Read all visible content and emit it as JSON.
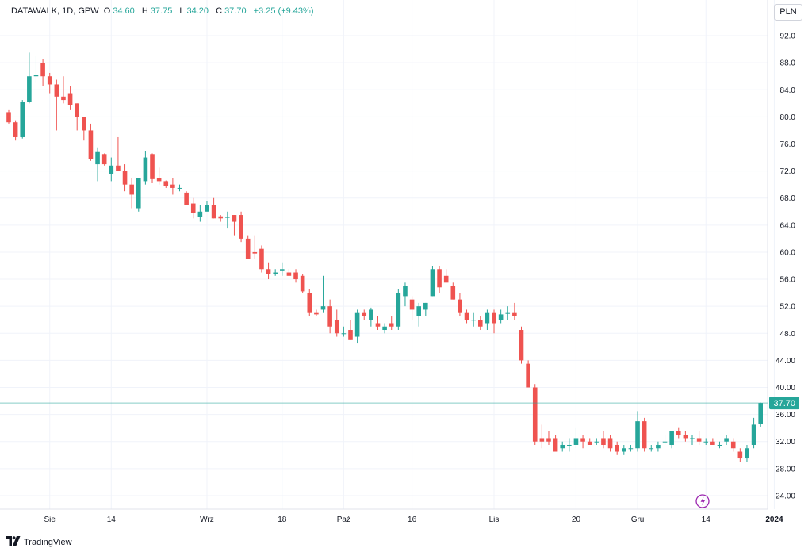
{
  "legend": {
    "symbol": "DATAWALK, 1D, GPW",
    "o_label": "O",
    "o_value": "34.60",
    "h_label": "H",
    "h_value": "37.75",
    "l_label": "L",
    "l_value": "34.20",
    "c_label": "C",
    "c_value": "37.70",
    "change": "+3.25 (+9.43%)"
  },
  "currency_button": "PLN",
  "brand": "TradingView",
  "colors": {
    "up": "#26a69a",
    "down": "#ef5350",
    "last_price": "#26a69a"
  },
  "chart_data": {
    "type": "candlestick",
    "ylim": [
      22,
      94
    ],
    "y_ticks": [
      "92.0",
      "88.0",
      "84.0",
      "80.0",
      "76.0",
      "72.0",
      "68.0",
      "64.0",
      "60.0",
      "56.0",
      "52.0",
      "48.0",
      "44.00",
      "40.00",
      "36.00",
      "32.00",
      "28.00",
      "24.00"
    ],
    "x_ticks": [
      {
        "label": "Sie",
        "index": 6
      },
      {
        "label": "14",
        "index": 15
      },
      {
        "label": "Wrz",
        "index": 29
      },
      {
        "label": "18",
        "index": 40
      },
      {
        "label": "Paź",
        "index": 49
      },
      {
        "label": "16",
        "index": 59
      },
      {
        "label": "Lis",
        "index": 71
      },
      {
        "label": "20",
        "index": 83
      },
      {
        "label": "Gru",
        "index": 92
      },
      {
        "label": "14",
        "index": 102
      },
      {
        "label": "2024",
        "index": 112,
        "bold": true
      }
    ],
    "last_price": "37.70",
    "candles": [
      [
        80.7,
        81.0,
        79.0,
        79.2
      ],
      [
        79.2,
        79.5,
        76.5,
        77.0
      ],
      [
        77.0,
        82.5,
        76.8,
        82.2
      ],
      [
        82.2,
        89.5,
        82.0,
        86.0
      ],
      [
        86.0,
        89.0,
        85.0,
        86.2
      ],
      [
        88.0,
        88.5,
        84.5,
        86.0
      ],
      [
        86.0,
        86.5,
        83.5,
        84.8
      ],
      [
        84.8,
        85.5,
        78.0,
        83.0
      ],
      [
        83.0,
        86.0,
        82.0,
        82.5
      ],
      [
        83.5,
        84.5,
        81.0,
        81.8
      ],
      [
        82.0,
        82.0,
        78.0,
        80.0
      ],
      [
        80.0,
        80.0,
        76.5,
        78.0
      ],
      [
        78.0,
        79.0,
        73.5,
        73.8
      ],
      [
        73.0,
        75.5,
        70.5,
        74.8
      ],
      [
        74.5,
        74.6,
        72.8,
        73.0
      ],
      [
        71.5,
        74.0,
        70.5,
        72.8
      ],
      [
        72.8,
        77.0,
        72.0,
        72.0
      ],
      [
        72.0,
        73.0,
        69.0,
        70.0
      ],
      [
        70.0,
        71.0,
        66.5,
        68.5
      ],
      [
        66.5,
        71.0,
        66.0,
        71.0
      ],
      [
        70.5,
        75.0,
        70.0,
        74.0
      ],
      [
        74.5,
        74.6,
        70.2,
        70.8
      ],
      [
        71.0,
        72.5,
        70.0,
        70.5
      ],
      [
        70.5,
        70.6,
        69.5,
        69.8
      ],
      [
        70.0,
        71.0,
        68.5,
        69.5
      ],
      [
        69.5,
        70.0,
        69.0,
        69.5
      ],
      [
        68.8,
        69.0,
        67.0,
        67.0
      ],
      [
        67.2,
        68.0,
        65.0,
        65.8
      ],
      [
        65.2,
        67.0,
        64.5,
        66.0
      ],
      [
        66.0,
        67.5,
        66.0,
        67.0
      ],
      [
        67.0,
        68.0,
        65.0,
        65.0
      ],
      [
        65.3,
        65.5,
        64.5,
        65.0
      ],
      [
        65.2,
        66.0,
        63.5,
        65.2
      ],
      [
        65.5,
        65.5,
        62.5,
        64.5
      ],
      [
        65.5,
        66.0,
        61.5,
        62.0
      ],
      [
        62.0,
        62.5,
        59.0,
        59.0
      ],
      [
        60.0,
        62.5,
        59.0,
        59.8
      ],
      [
        60.5,
        61.0,
        57.0,
        57.5
      ],
      [
        57.5,
        58.5,
        56.0,
        56.8
      ],
      [
        56.8,
        57.5,
        56.5,
        57.0
      ],
      [
        57.2,
        58.5,
        56.5,
        57.5
      ],
      [
        57.0,
        57.5,
        56.5,
        56.5
      ],
      [
        57.0,
        57.5,
        55.5,
        56.0
      ],
      [
        56.5,
        56.8,
        54.0,
        54.2
      ],
      [
        54.0,
        54.5,
        50.5,
        51.0
      ],
      [
        51.0,
        51.5,
        50.5,
        50.8
      ],
      [
        51.5,
        56.5,
        51.0,
        52.0
      ],
      [
        52.0,
        53.0,
        48.0,
        49.0
      ],
      [
        50.0,
        51.5,
        47.5,
        48.0
      ],
      [
        48.0,
        49.0,
        47.5,
        48.0
      ],
      [
        48.5,
        50.0,
        47.0,
        47.0
      ],
      [
        47.5,
        51.5,
        46.5,
        51.0
      ],
      [
        51.0,
        51.5,
        50.0,
        50.5
      ],
      [
        50.0,
        51.8,
        49.0,
        51.5
      ],
      [
        49.5,
        50.5,
        48.5,
        49.0
      ],
      [
        48.5,
        49.5,
        48.0,
        49.0
      ],
      [
        49.5,
        50.5,
        48.5,
        49.0
      ],
      [
        49.0,
        54.5,
        48.5,
        54.0
      ],
      [
        53.5,
        55.5,
        52.0,
        55.0
      ],
      [
        53.0,
        53.5,
        50.0,
        51.5
      ],
      [
        50.5,
        52.5,
        49.0,
        52.0
      ],
      [
        51.5,
        52.5,
        50.5,
        52.5
      ],
      [
        53.5,
        58.0,
        53.5,
        57.5
      ],
      [
        57.5,
        58.0,
        54.0,
        54.8
      ],
      [
        56.5,
        57.5,
        55.5,
        55.5
      ],
      [
        55.0,
        55.5,
        53.0,
        53.0
      ],
      [
        53.0,
        54.0,
        50.5,
        51.0
      ],
      [
        51.0,
        51.5,
        49.5,
        50.0
      ],
      [
        50.0,
        51.0,
        49.0,
        50.0
      ],
      [
        50.0,
        50.5,
        48.5,
        49.0
      ],
      [
        49.5,
        51.5,
        48.5,
        51.0
      ],
      [
        51.0,
        51.5,
        48.0,
        49.5
      ],
      [
        50.0,
        51.5,
        49.5,
        50.8
      ],
      [
        51.0,
        52.0,
        50.0,
        51.0
      ],
      [
        51.0,
        52.5,
        50.0,
        50.5
      ],
      [
        48.5,
        49.0,
        43.5,
        44.0
      ],
      [
        43.5,
        44.0,
        40.0,
        40.0
      ],
      [
        40.0,
        40.5,
        31.5,
        32.0
      ],
      [
        32.5,
        34.5,
        31.0,
        32.0
      ],
      [
        32.5,
        33.5,
        31.5,
        32.0
      ],
      [
        32.5,
        33.0,
        30.5,
        30.5
      ],
      [
        31.0,
        32.0,
        30.5,
        31.5
      ],
      [
        31.5,
        32.5,
        30.5,
        31.5
      ],
      [
        31.5,
        34.0,
        31.0,
        32.5
      ],
      [
        32.5,
        33.0,
        31.0,
        32.0
      ],
      [
        32.0,
        32.5,
        31.5,
        31.5
      ],
      [
        32.0,
        32.5,
        31.5,
        32.0
      ],
      [
        32.5,
        33.5,
        31.0,
        31.5
      ],
      [
        32.5,
        33.0,
        30.5,
        31.0
      ],
      [
        31.5,
        32.0,
        30.0,
        30.5
      ],
      [
        30.5,
        31.5,
        30.0,
        31.0
      ],
      [
        31.0,
        31.5,
        30.5,
        31.0
      ],
      [
        31.0,
        36.5,
        30.5,
        35.0
      ],
      [
        35.0,
        35.5,
        30.5,
        31.0
      ],
      [
        31.0,
        31.5,
        30.5,
        31.0
      ],
      [
        31.0,
        32.0,
        30.5,
        31.5
      ],
      [
        32.0,
        33.0,
        31.5,
        32.0
      ],
      [
        31.5,
        33.5,
        31.0,
        33.5
      ],
      [
        33.5,
        34.0,
        32.5,
        33.0
      ],
      [
        33.0,
        33.5,
        32.0,
        32.5
      ],
      [
        32.5,
        33.0,
        31.5,
        32.5
      ],
      [
        32.5,
        33.5,
        31.5,
        32.0
      ],
      [
        32.0,
        32.5,
        31.5,
        32.0
      ],
      [
        32.0,
        32.5,
        31.5,
        31.5
      ],
      [
        31.5,
        32.0,
        31.0,
        31.5
      ],
      [
        32.0,
        33.0,
        31.5,
        32.5
      ],
      [
        32.0,
        32.5,
        30.5,
        31.0
      ],
      [
        30.5,
        31.0,
        29.0,
        29.5
      ],
      [
        29.5,
        31.5,
        29.0,
        31.0
      ],
      [
        31.5,
        35.5,
        31.0,
        34.5
      ],
      [
        34.6,
        37.75,
        34.2,
        37.7
      ]
    ]
  }
}
